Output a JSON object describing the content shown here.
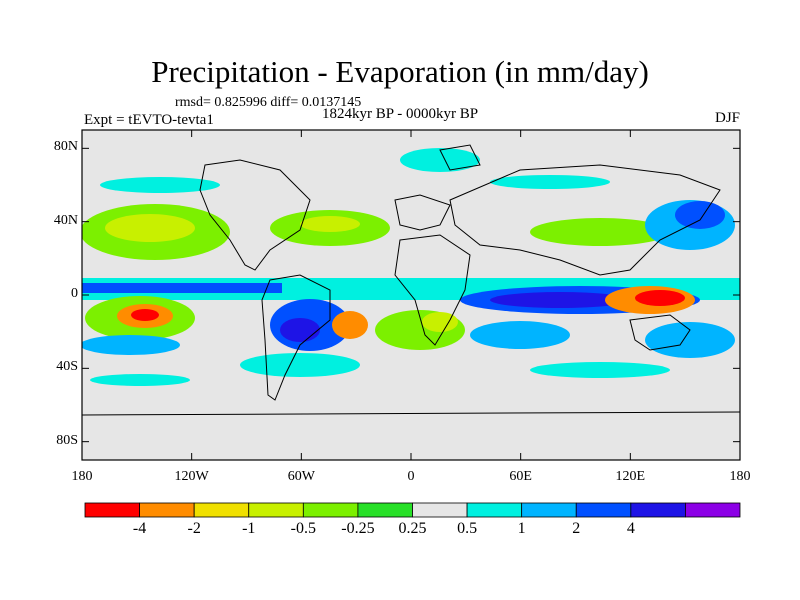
{
  "title": "Precipitation - Evaporation (in mm/day)",
  "stats": "rmsd= 0.825996  diff= 0.0137145",
  "period": "1824kyr BP - 0000kyr BP",
  "experiment": "Expt = tEVTO-tevta1",
  "season": "DJF",
  "axes": {
    "lat_ticks": [
      {
        "label": "80N",
        "lat": 80
      },
      {
        "label": "40N",
        "lat": 40
      },
      {
        "label": "0",
        "lat": 0
      },
      {
        "label": "40S",
        "lat": -40
      },
      {
        "label": "80S",
        "lat": -80
      }
    ],
    "lon_ticks": [
      {
        "label": "180",
        "lon": -180
      },
      {
        "label": "120W",
        "lon": -120
      },
      {
        "label": "60W",
        "lon": -60
      },
      {
        "label": "0",
        "lon": 0
      },
      {
        "label": "60E",
        "lon": 60
      },
      {
        "label": "120E",
        "lon": 120
      },
      {
        "label": "180",
        "lon": 180
      }
    ],
    "lon_range": [
      -180,
      180
    ],
    "lat_range": [
      -90,
      90
    ]
  },
  "colorbar": {
    "colors": [
      "#ff0000",
      "#ff8c00",
      "#f0e000",
      "#c8f000",
      "#7cf000",
      "#28e028",
      "#e6e6e6",
      "#00f0e0",
      "#00b4ff",
      "#0050ff",
      "#1e14e6",
      "#8c00e6"
    ],
    "labels": [
      "-4",
      "-2",
      "-1",
      "-0.5",
      "-0.25",
      "0.25",
      "0.5",
      "1",
      "2",
      "4"
    ]
  }
}
